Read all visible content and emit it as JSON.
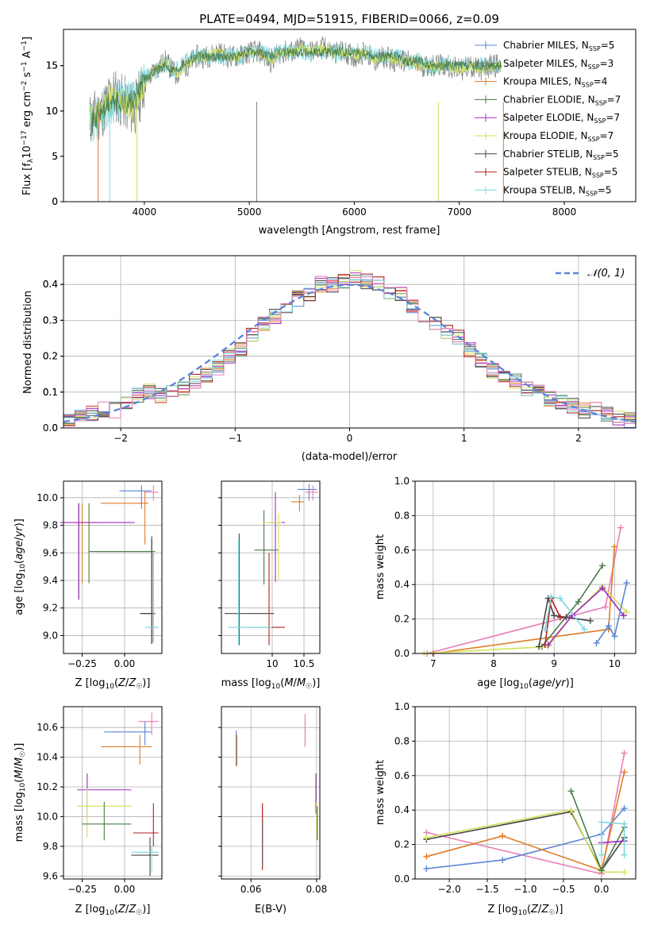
{
  "figure_title": "PLATE=0494, MJD=51915, FIBERID=0066, z=0.09",
  "colors": {
    "Chabrier MILES": "#5b84d6",
    "Salpeter MILES": "#7f7f7f",
    "Kroupa MILES": "#e07b25",
    "Chabrier ELODIE": "#4a7c4a",
    "Salpeter ELODIE": "#a02bc0",
    "Kroupa ELODIE": "#d5e05a",
    "Chabrier STELIB": "#444444",
    "Salpeter STELIB": "#b22222",
    "Kroupa STELIB": "#7fd8df",
    "pink": "#e87fb6",
    "normal": "#5b84d6"
  },
  "chart_data": [
    {
      "type": "line",
      "title": "PLATE=0494, MJD=51915, FIBERID=0066, z=0.09",
      "xlabel": "wavelength [Angstrom, rest frame]",
      "ylabel_parts": [
        "Flux [f",
        "λ",
        "10",
        "−17",
        " erg cm",
        "−2",
        " s",
        "−1",
        " A",
        "−1",
        "]"
      ],
      "xlim": [
        3230,
        8680
      ],
      "ylim": [
        0,
        19
      ],
      "xticks": [
        4000,
        5000,
        6000,
        7000,
        8000
      ],
      "yticks": [
        0,
        5,
        10,
        15
      ],
      "grid": false,
      "legend_position": "right",
      "legend": [
        {
          "label": "Chabrier MILES, N",
          "sub": "SSP",
          "tail": "=5"
        },
        {
          "label": "Salpeter MILES, N",
          "sub": "SSP",
          "tail": "=3"
        },
        {
          "label": "Kroupa MILES, N",
          "sub": "SSP",
          "tail": "=4"
        },
        {
          "label": "Chabrier ELODIE, N",
          "sub": "SSP",
          "tail": "=7"
        },
        {
          "label": "Salpeter ELODIE, N",
          "sub": "SSP",
          "tail": "=7"
        },
        {
          "label": "Kroupa ELODIE, N",
          "sub": "SSP",
          "tail": "=7"
        },
        {
          "label": "Chabrier STELIB, N",
          "sub": "SSP",
          "tail": "=5"
        },
        {
          "label": "Salpeter STELIB, N",
          "sub": "SSP",
          "tail": "=5"
        },
        {
          "label": "Kroupa STELIB, N",
          "sub": "SSP",
          "tail": "=5"
        }
      ],
      "series": [
        {
          "name": "Salpeter MILES, NSSP=3",
          "x": [
            3480,
            3600,
            3700,
            3800,
            3900,
            4000,
            4100,
            4200,
            4300,
            4400,
            4500,
            4600,
            4700,
            4800,
            4900,
            5000,
            5100,
            5200,
            5300,
            5400,
            5500,
            5600,
            5700,
            5800,
            5900,
            6000,
            6100,
            6200,
            6300,
            6400,
            6500,
            6600,
            6700,
            6800,
            6900,
            7000,
            7100,
            7200,
            7300,
            7400
          ],
          "y": [
            9,
            10,
            12,
            11,
            10,
            13,
            14.5,
            15.5,
            14,
            15,
            16,
            16,
            16.5,
            16,
            16,
            16.5,
            16.5,
            15.5,
            16.5,
            16.5,
            17,
            16.5,
            17,
            16.5,
            16.5,
            16,
            16.5,
            15.5,
            16,
            15.5,
            15.5,
            15,
            15,
            15,
            15,
            14.5,
            15,
            14.5,
            15,
            15
          ]
        },
        {
          "name": "Kroupa STELIB, NSSP=5",
          "x": [
            3480,
            3600,
            3700,
            3800,
            3900,
            4000,
            4100,
            4200,
            4300,
            4400,
            4500,
            4600,
            4700,
            4800,
            4900,
            5000,
            5100,
            5200,
            5300,
            5400,
            5500,
            5600,
            5700,
            5800,
            5900,
            6000,
            6100,
            6200,
            6300,
            6400,
            6500,
            6600,
            6700,
            6800,
            6900,
            7000,
            7100,
            7200,
            7300,
            7400
          ],
          "y": [
            8.5,
            10,
            11,
            11,
            11,
            13.5,
            14.5,
            15,
            14.5,
            15.5,
            16,
            16,
            16,
            16,
            16,
            16.5,
            16.5,
            16,
            16.5,
            16.5,
            16.5,
            16.5,
            16.5,
            16.5,
            16.5,
            16.5,
            16.5,
            16,
            16,
            16,
            15.5,
            15.5,
            15,
            15,
            15,
            15,
            15,
            15,
            15,
            15
          ]
        }
      ]
    },
    {
      "type": "bar",
      "subtype": "step-histogram",
      "xlabel": "(data-model)/error",
      "ylabel": "Normed distribution",
      "xlim": [
        -2.5,
        2.5
      ],
      "ylim": [
        0,
        0.48
      ],
      "xticks": [
        -2,
        -1,
        0,
        1,
        2
      ],
      "yticks": [
        0.0,
        0.1,
        0.2,
        0.3,
        0.4
      ],
      "grid": true,
      "legend_position": "top-right",
      "legend": [
        {
          "label": "𝒩(0, 1)"
        }
      ],
      "bin_edges": [
        -2.5,
        -2.4,
        -2.3,
        -2.2,
        -2.1,
        -2.0,
        -1.9,
        -1.8,
        -1.7,
        -1.6,
        -1.5,
        -1.4,
        -1.3,
        -1.2,
        -1.1,
        -1.0,
        -0.9,
        -0.8,
        -0.7,
        -0.6,
        -0.5,
        -0.4,
        -0.3,
        -0.2,
        -0.1,
        0.0,
        0.1,
        0.2,
        0.3,
        0.4,
        0.5,
        0.6,
        0.7,
        0.8,
        0.9,
        1.0,
        1.1,
        1.2,
        1.3,
        1.4,
        1.5,
        1.6,
        1.7,
        1.8,
        1.9,
        2.0,
        2.1,
        2.2,
        2.3,
        2.4,
        2.5
      ],
      "histogram_values": [
        0.02,
        0.03,
        0.04,
        0.05,
        0.05,
        0.07,
        0.09,
        0.1,
        0.09,
        0.1,
        0.11,
        0.13,
        0.15,
        0.17,
        0.2,
        0.22,
        0.26,
        0.29,
        0.31,
        0.33,
        0.36,
        0.37,
        0.4,
        0.4,
        0.41,
        0.42,
        0.41,
        0.4,
        0.38,
        0.37,
        0.34,
        0.31,
        0.29,
        0.27,
        0.25,
        0.22,
        0.19,
        0.16,
        0.14,
        0.13,
        0.11,
        0.1,
        0.08,
        0.07,
        0.06,
        0.05,
        0.05,
        0.04,
        0.03,
        0.02
      ],
      "series": [
        {
          "name": "𝒩(0, 1)",
          "x": [
            -2.5,
            -2.0,
            -1.5,
            -1.0,
            -0.5,
            0,
            0.5,
            1.0,
            1.5,
            2.0,
            2.5
          ],
          "y": [
            0.0175,
            0.054,
            0.1295,
            0.242,
            0.352,
            0.399,
            0.352,
            0.242,
            0.1295,
            0.054,
            0.0175
          ]
        }
      ]
    },
    {
      "type": "scatter",
      "subtype": "errorbar-crosses",
      "xlabel": "Z [log10(Z/Z☉)]",
      "ylabel": "age  [log10(age/yr)]",
      "xlim": [
        -0.36,
        0.22
      ],
      "ylim": [
        8.87,
        10.12
      ],
      "xticks": [
        -0.25,
        0.0
      ],
      "xtick_labels": [
        "−0.25",
        "0.00"
      ],
      "yticks": [
        9.0,
        9.2,
        9.4,
        9.6,
        9.8,
        10.0
      ],
      "grid": true
    },
    {
      "type": "scatter",
      "subtype": "errorbar-crosses",
      "xlabel": "mass [log10(M/M☉)]",
      "xlim": [
        9.2,
        10.75
      ],
      "ylim": [
        8.87,
        10.12
      ],
      "xticks": [
        10.0,
        10.5
      ],
      "yticks": [
        9.0,
        9.2,
        9.4,
        9.6,
        9.8,
        10.0
      ],
      "grid": true
    },
    {
      "type": "line",
      "xlabel": "age  [log10(age/yr)]",
      "ylabel": "mass weight",
      "xlim": [
        6.7,
        10.35
      ],
      "ylim": [
        0,
        1.0
      ],
      "xticks": [
        7,
        8,
        9,
        10
      ],
      "yticks": [
        0.0,
        0.2,
        0.4,
        0.6,
        0.8,
        1.0
      ],
      "grid": true
    },
    {
      "type": "scatter",
      "subtype": "errorbar-crosses",
      "xlabel": "Z [log10(Z/Z☉)]",
      "ylabel": "mass [log10(M/M☉)]",
      "xlim": [
        -0.36,
        0.22
      ],
      "ylim": [
        9.58,
        10.74
      ],
      "xticks": [
        -0.25,
        0.0
      ],
      "xtick_labels": [
        "−0.25",
        "0.00"
      ],
      "yticks": [
        9.6,
        9.8,
        10.0,
        10.2,
        10.4,
        10.6
      ],
      "grid": true
    },
    {
      "type": "scatter",
      "subtype": "errorbar-crosses",
      "xlabel": "E(B-V)",
      "xlim": [
        0.051,
        0.081
      ],
      "ylim": [
        9.58,
        10.74
      ],
      "xticks": [
        0.06,
        0.08
      ],
      "yticks": [
        9.6,
        9.8,
        10.0,
        10.2,
        10.4,
        10.6
      ],
      "grid": true
    },
    {
      "type": "line",
      "xlabel": "Z [log10(Z/Z☉)]",
      "ylabel": "mass weight",
      "xlim": [
        -2.45,
        0.45
      ],
      "ylim": [
        0,
        1.0
      ],
      "xticks": [
        -2.0,
        -1.5,
        -1.0,
        -0.5,
        0.0
      ],
      "xtick_labels": [
        "−2.0",
        "−1.5",
        "−1.0",
        "−0.5",
        "0.0"
      ],
      "yticks": [
        0.0,
        0.2,
        0.4,
        0.6,
        0.8,
        1.0
      ],
      "grid": true
    }
  ]
}
